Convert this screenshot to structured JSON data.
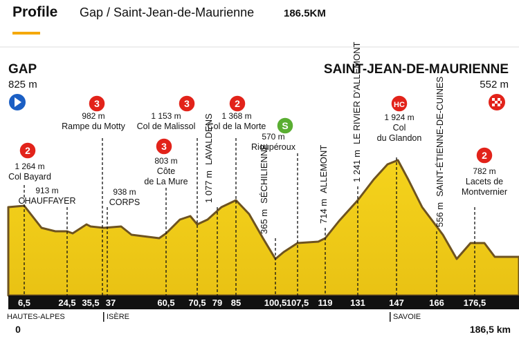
{
  "header": {
    "title": "Profile",
    "route": "Gap / Saint-Jean-de-Maurienne",
    "distance": "186.5KM"
  },
  "start": {
    "name": "GAP",
    "altitude": "825 m"
  },
  "finish": {
    "name": "SAINT-JEAN-DE-MAURIENNE",
    "altitude": "552 m"
  },
  "points": [
    {
      "km": "6,5",
      "category": "2",
      "altitude": "1 264 m",
      "name": [
        "Col Bayard"
      ]
    },
    {
      "km": "24,5",
      "altitude": "913 m",
      "name": [
        "CHAUFFAYER"
      ]
    },
    {
      "km": "35,5",
      "category": "3",
      "altitude": "982 m",
      "name": [
        "Rampe du Motty"
      ]
    },
    {
      "km": "37",
      "altitude": "938 m",
      "name": [
        "CORPS"
      ]
    },
    {
      "km": "60,5",
      "category": "3",
      "altitude": "803 m",
      "name": [
        "Côte",
        "de La Mure"
      ]
    },
    {
      "km": "70,5",
      "category": "3",
      "altitude": "1 153 m",
      "name": [
        "Col de Malissol"
      ]
    },
    {
      "km": "79",
      "altitude": "1 077 m",
      "name": [
        "LAVALDENS"
      ]
    },
    {
      "km": "85",
      "category": "2",
      "altitude": "1 368 m",
      "name": [
        "Col de la Morte"
      ]
    },
    {
      "km": "100,5",
      "altitude": "365 m",
      "name": [
        "SÉCHILIENNE"
      ]
    },
    {
      "km": "107,5",
      "category": "S",
      "altitude": "570 m",
      "name": [
        "Rioupéroux"
      ]
    },
    {
      "km": "119",
      "altitude": "714 m",
      "name": [
        "ALLEMONT"
      ]
    },
    {
      "km": "131",
      "altitude": "1 241 m",
      "name": [
        "LE RIVIER D'ALLEMONT"
      ]
    },
    {
      "km": "147",
      "category": "HC",
      "altitude": "1 924 m",
      "name": [
        "Col",
        "du Glandon"
      ]
    },
    {
      "km": "166",
      "altitude": "556 m",
      "name": [
        "SAINT-ÉTIENNE-DE-CUINES"
      ]
    },
    {
      "km": "176,5",
      "category": "2",
      "altitude": "782 m",
      "name": [
        "Lacets de",
        "Montvernier"
      ]
    }
  ],
  "km_start": "0",
  "km_end": "186,5 km",
  "regions": [
    "HAUTES-ALPES",
    "ISÈRE",
    "SAVOIE"
  ]
}
